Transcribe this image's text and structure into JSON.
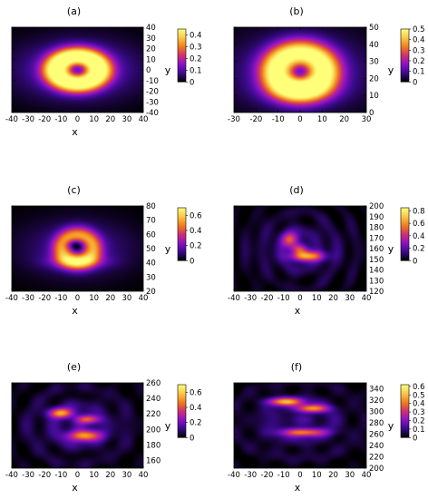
{
  "colorscale": {
    "name": "gnuplot-pm3d",
    "stops": [
      "#000000",
      "#3b0a8c",
      "#8b12c8",
      "#d0306f",
      "#f07e1a",
      "#f9c84a",
      "#ffff7a"
    ]
  },
  "chart_data": [
    {
      "type": "heatmap",
      "label": "(a)",
      "xlabel": "x",
      "ylabel": "y",
      "xlim": [
        -40,
        40
      ],
      "ylim": [
        -40,
        40
      ],
      "xticks": [
        "-40",
        "-30",
        "-20",
        "-10",
        "0",
        "10",
        "20",
        "30",
        "40"
      ],
      "yticks": [
        "-40",
        "-30",
        "-20",
        "-10",
        "0",
        "10",
        "20",
        "30",
        "40"
      ],
      "zlim": [
        0,
        0.45
      ],
      "cbticks": [
        "0",
        "0.1",
        "0.2",
        "0.3",
        "0.4"
      ],
      "blobs": [
        {
          "kind": "ring",
          "cx": 0,
          "cy": 0,
          "r": 13,
          "w": 8.5,
          "amp": 0.45,
          "hole": 3.5
        },
        {
          "kind": "halo",
          "cx": 0,
          "cy": 0,
          "sx": 38,
          "sy": 28,
          "amp": 0.13
        }
      ]
    },
    {
      "type": "heatmap",
      "label": "(b)",
      "xlabel": "",
      "ylabel": "y",
      "xlim": [
        -30,
        30
      ],
      "ylim": [
        0,
        50
      ],
      "xticks": [
        "-30",
        "-20",
        "-10",
        "0",
        "10",
        "20",
        "30"
      ],
      "yticks": [
        "0",
        "10",
        "20",
        "30",
        "40",
        "50"
      ],
      "zlim": [
        0,
        0.5
      ],
      "cbticks": [
        "0",
        "0.1",
        "0.2",
        "0.3",
        "0.4",
        "0.5"
      ],
      "blobs": [
        {
          "kind": "ring",
          "cx": 0,
          "cy": 24,
          "r": 11,
          "w": 7.5,
          "amp": 0.45,
          "hole": 2.8
        },
        {
          "kind": "gauss",
          "cx": 0,
          "cy": 13,
          "sx": 11,
          "sy": 5,
          "amp": 0.12
        },
        {
          "kind": "halo",
          "cx": 0,
          "cy": 24,
          "sx": 30,
          "sy": 22,
          "amp": 0.14
        }
      ]
    },
    {
      "type": "heatmap",
      "label": "(c)",
      "xlabel": "x",
      "ylabel": "y",
      "xlim": [
        -40,
        40
      ],
      "ylim": [
        20,
        80
      ],
      "xticks": [
        "-40",
        "-30",
        "-20",
        "-10",
        "0",
        "10",
        "20",
        "30",
        "40"
      ],
      "yticks": [
        "20",
        "30",
        "40",
        "50",
        "60",
        "70",
        "80"
      ],
      "zlim": [
        0,
        0.7
      ],
      "cbticks": [
        "0",
        "0.2",
        "0.4",
        "0.6"
      ],
      "blobs": [
        {
          "kind": "ring",
          "cx": 0,
          "cy": 50,
          "r": 9.5,
          "w": 6,
          "amp": 0.42,
          "hole": 2.5
        },
        {
          "kind": "gauss",
          "cx": 0,
          "cy": 41,
          "sx": 12,
          "sy": 3.5,
          "amp": 0.22
        },
        {
          "kind": "gauss",
          "cx": -2,
          "cy": 53,
          "sx": 4,
          "sy": 2.5,
          "amp": -0.2
        },
        {
          "kind": "halo",
          "cx": 0,
          "cy": 50,
          "sx": 34,
          "sy": 20,
          "amp": 0.14
        }
      ]
    },
    {
      "type": "heatmap",
      "label": "(d)",
      "xlabel": "x",
      "ylabel": "y",
      "xlim": [
        -40,
        40
      ],
      "ylim": [
        120,
        200
      ],
      "xticks": [
        "-40",
        "-30",
        "-20",
        "-10",
        "0",
        "10",
        "20",
        "30",
        "40"
      ],
      "yticks": [
        "120",
        "130",
        "140",
        "150",
        "160",
        "170",
        "180",
        "190",
        "200"
      ],
      "zlim": [
        0,
        0.85
      ],
      "cbticks": [
        "0",
        "0.2",
        "0.4",
        "0.6",
        "0.8"
      ],
      "blobs": [
        {
          "kind": "gauss",
          "cx": 4,
          "cy": 153,
          "sx": 7,
          "sy": 3.5,
          "amp": 0.58
        },
        {
          "kind": "gauss",
          "cx": -6,
          "cy": 168,
          "sx": 3.5,
          "sy": 5,
          "amp": 0.42
        },
        {
          "kind": "gauss",
          "cx": -1,
          "cy": 160,
          "sx": 3.5,
          "sy": 3,
          "amp": 0.25
        },
        {
          "kind": "halo",
          "cx": 0,
          "cy": 160,
          "sx": 36,
          "sy": 32,
          "amp": 0.11
        },
        {
          "kind": "waves",
          "cx": 0,
          "cy": 158,
          "k": 0.55,
          "amp": 0.045
        }
      ]
    },
    {
      "type": "heatmap",
      "label": "(e)",
      "xlabel": "x",
      "ylabel": "y",
      "xlim": [
        -40,
        40
      ],
      "ylim": [
        150,
        260
      ],
      "xticks": [
        "-40",
        "-30",
        "-20",
        "-10",
        "0",
        "10",
        "20",
        "30",
        "40"
      ],
      "yticks": [
        "160",
        "180",
        "200",
        "220",
        "240",
        "260"
      ],
      "zlim": [
        0,
        0.7
      ],
      "cbticks": [
        "0",
        "0.2",
        "0.4",
        "0.6"
      ],
      "blobs": [
        {
          "kind": "gauss",
          "cx": -10,
          "cy": 221,
          "sx": 5,
          "sy": 4.5,
          "amp": 0.45
        },
        {
          "kind": "gauss",
          "cx": 6,
          "cy": 213,
          "sx": 5,
          "sy": 4,
          "amp": 0.36
        },
        {
          "kind": "gauss",
          "cx": 4,
          "cy": 192,
          "sx": 7,
          "sy": 5,
          "amp": 0.46
        },
        {
          "kind": "halo",
          "cx": 0,
          "cy": 205,
          "sx": 36,
          "sy": 45,
          "amp": 0.1
        },
        {
          "kind": "waves",
          "cx": 0,
          "cy": 205,
          "k": 0.4,
          "amp": 0.04
        }
      ]
    },
    {
      "type": "heatmap",
      "label": "(f)",
      "xlabel": "x",
      "ylabel": "y",
      "xlim": [
        -40,
        40
      ],
      "ylim": [
        200,
        350
      ],
      "xticks": [
        "-40",
        "-30",
        "-20",
        "-10",
        "0",
        "10",
        "20",
        "30",
        "40"
      ],
      "yticks": [
        "200",
        "220",
        "240",
        "260",
        "280",
        "300",
        "320",
        "340"
      ],
      "zlim": [
        0,
        0.62
      ],
      "cbticks": [
        "0",
        "0.1",
        "0.2",
        "0.3",
        "0.4",
        "0.5",
        "0.6"
      ],
      "blobs": [
        {
          "kind": "gauss",
          "cx": -9,
          "cy": 317,
          "sx": 7,
          "sy": 5,
          "amp": 0.43
        },
        {
          "kind": "gauss",
          "cx": 7,
          "cy": 305,
          "sx": 6.5,
          "sy": 5,
          "amp": 0.4
        },
        {
          "kind": "gauss",
          "cx": 2,
          "cy": 263,
          "sx": 9,
          "sy": 5,
          "amp": 0.36
        },
        {
          "kind": "halo",
          "cx": 0,
          "cy": 280,
          "sx": 36,
          "sy": 60,
          "amp": 0.09
        },
        {
          "kind": "waves",
          "cx": 0,
          "cy": 285,
          "k": 0.3,
          "amp": 0.035
        }
      ]
    }
  ]
}
